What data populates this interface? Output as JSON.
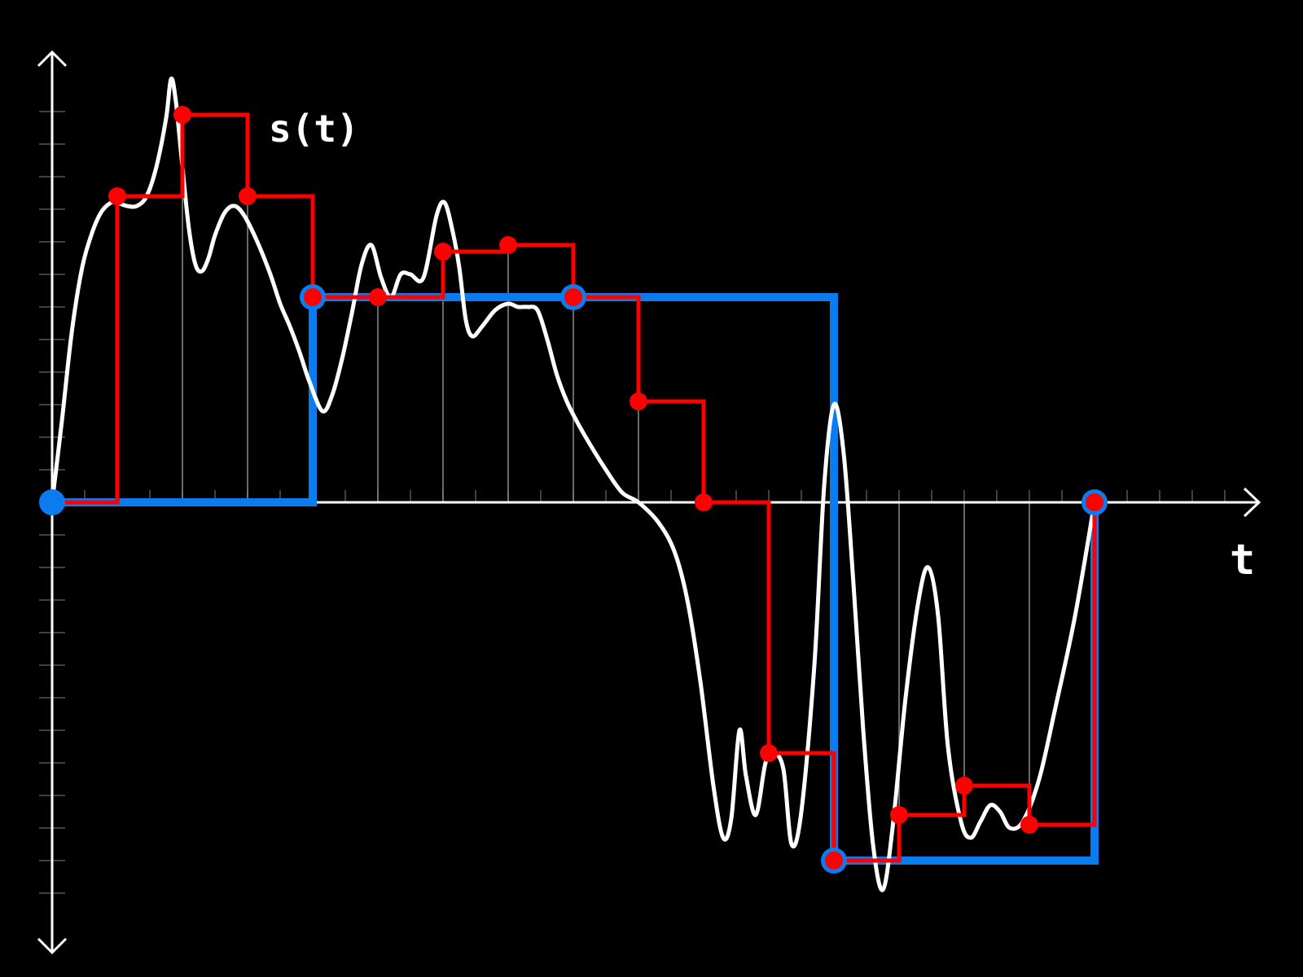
{
  "chart_data": {
    "type": "line",
    "title": "",
    "curve_label": "s(t)",
    "xlabel": "t",
    "ylabel": "",
    "xlim": [
      0,
      37
    ],
    "ylim": [
      -13.5,
      13.5
    ],
    "grid": false,
    "colors": {
      "background": "#000000",
      "signal": "#ffffff",
      "fine_sampling": "#ff0000",
      "coarse_sampling": "#0a7cf0",
      "axes": "#ffffff",
      "sample_guides": "#8a8a8a"
    },
    "signal": {
      "name": "s(t)",
      "points": [
        [
          0,
          0
        ],
        [
          0.3,
          2.5
        ],
        [
          0.6,
          5.2
        ],
        [
          0.9,
          7.1
        ],
        [
          1.2,
          8.2
        ],
        [
          1.5,
          8.9
        ],
        [
          1.8,
          9.2
        ],
        [
          2.0,
          9.2
        ],
        [
          2.3,
          9.1
        ],
        [
          2.6,
          9.1
        ],
        [
          2.9,
          9.4
        ],
        [
          3.2,
          10.3
        ],
        [
          3.5,
          11.8
        ],
        [
          3.65,
          13.0
        ],
        [
          3.8,
          12.3
        ],
        [
          4.0,
          10.3
        ],
        [
          4.2,
          8.4
        ],
        [
          4.4,
          7.3
        ],
        [
          4.6,
          7.1
        ],
        [
          4.8,
          7.5
        ],
        [
          5.0,
          8.2
        ],
        [
          5.3,
          8.9
        ],
        [
          5.6,
          9.1
        ],
        [
          5.9,
          8.8
        ],
        [
          6.3,
          8.0
        ],
        [
          6.7,
          7.0
        ],
        [
          7.0,
          6.1
        ],
        [
          7.3,
          5.4
        ],
        [
          7.6,
          4.6
        ],
        [
          7.9,
          3.7
        ],
        [
          8.3,
          2.8
        ],
        [
          8.6,
          3.3
        ],
        [
          8.9,
          4.4
        ],
        [
          9.2,
          5.8
        ],
        [
          9.5,
          7.3
        ],
        [
          9.8,
          7.9
        ],
        [
          10.1,
          6.9
        ],
        [
          10.4,
          6.3
        ],
        [
          10.7,
          7.0
        ],
        [
          11.0,
          7.0
        ],
        [
          11.4,
          6.9
        ],
        [
          11.8,
          8.8
        ],
        [
          12.05,
          9.2
        ],
        [
          12.3,
          8.3
        ],
        [
          12.5,
          7.2
        ],
        [
          12.7,
          5.6
        ],
        [
          12.9,
          5.1
        ],
        [
          13.2,
          5.4
        ],
        [
          13.6,
          5.9
        ],
        [
          14.0,
          6.1
        ],
        [
          14.3,
          6.0
        ],
        [
          14.6,
          6.0
        ],
        [
          14.9,
          5.9
        ],
        [
          15.2,
          5.0
        ],
        [
          15.5,
          3.9
        ],
        [
          15.8,
          3.1
        ],
        [
          16.1,
          2.5
        ],
        [
          16.5,
          1.8
        ],
        [
          17.0,
          1.0
        ],
        [
          17.5,
          0.3
        ],
        [
          18.0,
          0.0
        ],
        [
          18.6,
          -0.6
        ],
        [
          19.1,
          -1.5
        ],
        [
          19.5,
          -3.0
        ],
        [
          19.9,
          -5.5
        ],
        [
          20.3,
          -8.7
        ],
        [
          20.6,
          -10.3
        ],
        [
          20.85,
          -9.7
        ],
        [
          21.1,
          -7.0
        ],
        [
          21.3,
          -8.4
        ],
        [
          21.6,
          -9.6
        ],
        [
          21.9,
          -8.0
        ],
        [
          22.15,
          -7.7
        ],
        [
          22.45,
          -8.2
        ],
        [
          22.7,
          -10.5
        ],
        [
          23.0,
          -9.5
        ],
        [
          23.4,
          -5.0
        ],
        [
          23.7,
          0.5
        ],
        [
          24.0,
          3.0
        ],
        [
          24.3,
          1.5
        ],
        [
          24.6,
          -2.5
        ],
        [
          24.9,
          -7.0
        ],
        [
          25.2,
          -10.5
        ],
        [
          25.5,
          -11.9
        ],
        [
          25.8,
          -10.0
        ],
        [
          26.2,
          -6.0
        ],
        [
          26.6,
          -3.0
        ],
        [
          26.9,
          -2.0
        ],
        [
          27.2,
          -3.5
        ],
        [
          27.5,
          -7.5
        ],
        [
          27.9,
          -9.8
        ],
        [
          28.2,
          -10.3
        ],
        [
          28.5,
          -9.8
        ],
        [
          28.8,
          -9.3
        ],
        [
          29.1,
          -9.5
        ],
        [
          29.4,
          -10.0
        ],
        [
          29.8,
          -9.8
        ],
        [
          30.3,
          -8.5
        ],
        [
          30.8,
          -6.3
        ],
        [
          31.4,
          -3.5
        ],
        [
          32.0,
          0.0
        ]
      ]
    },
    "fine_samples": {
      "name": "",
      "period": 2,
      "x": [
        0,
        2,
        4,
        6,
        8,
        10,
        12,
        14,
        16,
        18,
        20,
        22,
        24,
        26,
        28,
        30,
        32
      ],
      "y": [
        0,
        9.4,
        11.9,
        9.4,
        6.3,
        6.3,
        7.7,
        7.9,
        6.3,
        3.1,
        0,
        -7.7,
        -11.0,
        -9.6,
        -8.7,
        -9.9,
        0
      ]
    },
    "coarse_samples": {
      "name": "",
      "period": 8,
      "x": [
        0,
        8,
        16,
        24,
        32
      ],
      "y": [
        0,
        6.3,
        6.3,
        -11.0,
        0
      ]
    }
  }
}
